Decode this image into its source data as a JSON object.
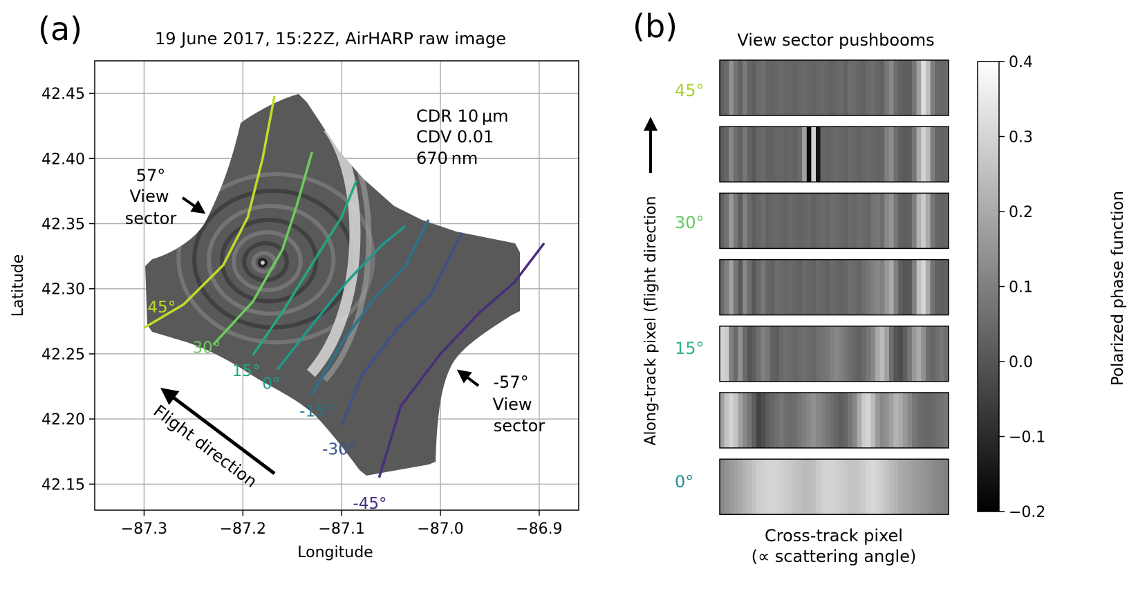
{
  "chart_data": [
    {
      "type": "scatter",
      "panel_label": "(a)",
      "title": "19 June 2017, 15:22Z, AirHARP raw image",
      "xlabel": "Longitude",
      "ylabel": "Latitude",
      "xlim": [
        -87.35,
        -86.86
      ],
      "ylim": [
        42.13,
        42.475
      ],
      "xticks": [
        -87.3,
        -87.2,
        -87.1,
        -87.0,
        -86.9
      ],
      "xtick_labels": [
        "−87.3",
        "−87.2",
        "−87.1",
        "−87.0",
        "−86.9"
      ],
      "yticks": [
        42.15,
        42.2,
        42.25,
        42.3,
        42.35,
        42.4,
        42.45
      ],
      "ytick_labels": [
        "42.15",
        "42.20",
        "42.25",
        "42.30",
        "42.35",
        "42.40",
        "42.45"
      ],
      "grid": true,
      "image_center": [
        -87.18,
        42.32
      ],
      "params": [
        "CDR 10 µm",
        "CDV 0.01",
        "670 nm"
      ],
      "view_angle_lines": [
        {
          "label": "45°",
          "color": "#c0dc2a",
          "points": [
            [
              -87.3,
              42.27
            ],
            [
              -87.26,
              42.288
            ],
            [
              -87.22,
              42.318
            ],
            [
              -87.195,
              42.355
            ],
            [
              -87.18,
              42.4
            ],
            [
              -87.168,
              42.448
            ]
          ]
        },
        {
          "label": "30°",
          "color": "#6ccd5a",
          "points": [
            [
              -87.23,
              42.257
            ],
            [
              -87.19,
              42.29
            ],
            [
              -87.16,
              42.33
            ],
            [
              -87.145,
              42.365
            ],
            [
              -87.13,
              42.405
            ]
          ]
        },
        {
          "label": "15°",
          "color": "#22a884",
          "points": [
            [
              -87.19,
              42.249
            ],
            [
              -87.16,
              42.282
            ],
            [
              -87.125,
              42.325
            ],
            [
              -87.1,
              42.355
            ],
            [
              -87.085,
              42.383
            ]
          ]
        },
        {
          "label": "0°",
          "color": "#1f9a8a",
          "points": [
            [
              -87.165,
              42.238
            ],
            [
              -87.13,
              42.272
            ],
            [
              -87.095,
              42.305
            ],
            [
              -87.06,
              42.333
            ],
            [
              -87.036,
              42.348
            ]
          ]
        },
        {
          "label": "-15°",
          "color": "#2c728e",
          "points": [
            [
              -87.13,
              42.219
            ],
            [
              -87.1,
              42.258
            ],
            [
              -87.07,
              42.29
            ],
            [
              -87.035,
              42.318
            ],
            [
              -87.012,
              42.353
            ]
          ]
        },
        {
          "label": "-30°",
          "color": "#3b528b",
          "points": [
            [
              -87.1,
              42.195
            ],
            [
              -87.08,
              42.233
            ],
            [
              -87.045,
              42.268
            ],
            [
              -87.01,
              42.295
            ],
            [
              -86.978,
              42.343
            ]
          ]
        },
        {
          "label": "-45°",
          "color": "#472d7b",
          "points": [
            [
              -87.062,
              42.155
            ],
            [
              -87.04,
              42.21
            ],
            [
              -87.0,
              42.25
            ],
            [
              -86.96,
              42.282
            ],
            [
              -86.925,
              42.305
            ],
            [
              -86.895,
              42.335
            ]
          ]
        }
      ],
      "annotations": {
        "view_sector_pos": [
          "57°",
          "View",
          "sector"
        ],
        "view_sector_neg": [
          "-57°",
          "View",
          "sector"
        ],
        "flight_direction": "Flight direction"
      }
    },
    {
      "type": "heatmap",
      "panel_label": "(b)",
      "title": "View sector pushbooms",
      "xlabel": "Cross-track pixel",
      "xlabel2": "(∝ scattering angle)",
      "ylabel": "Along-track pixel (flight direction",
      "row_labels": [
        {
          "label": "45°",
          "color": "#a8d22a"
        },
        {
          "label": "30°",
          "color": "#5ec962"
        },
        {
          "label": "15°",
          "color": "#2fb47c"
        },
        {
          "label": "0°",
          "color": "#21918c"
        }
      ],
      "pushboom_rows": [
        [
          0.03,
          0.05,
          0.14,
          0.07,
          0.03,
          0.09,
          0.04,
          0.02,
          0.05,
          0.06,
          0.04,
          0.03,
          0.04,
          0.05,
          0.04,
          0.04,
          0.03,
          0.04,
          0.05,
          0.04,
          0.03,
          0.04,
          0.05,
          0.04,
          0.03,
          0.04,
          0.05,
          0.03,
          0.06,
          0.05,
          0.04,
          0.03,
          0.05,
          0.06,
          0.04,
          0.03,
          0.08,
          0.12,
          0.06,
          0.03,
          0.02,
          0.02,
          0.08,
          0.18,
          0.32,
          0.25,
          0.1,
          0.05,
          0.04,
          0.05
        ],
        [
          0.02,
          0.04,
          0.12,
          0.06,
          0.03,
          0.08,
          0.03,
          0.01,
          0.04,
          0.05,
          0.03,
          0.03,
          0.04,
          0.04,
          0.03,
          0.04,
          0.03,
          0.05,
          0.18,
          -0.18,
          0.3,
          -0.15,
          0.04,
          0.03,
          0.04,
          0.05,
          0.04,
          0.03,
          0.05,
          0.04,
          0.03,
          0.04,
          0.05,
          0.04,
          0.03,
          0.04,
          0.1,
          0.13,
          0.06,
          0.02,
          0.01,
          0.02,
          0.08,
          0.2,
          0.3,
          0.24,
          0.1,
          0.04,
          0.03,
          0.04
        ],
        [
          0.03,
          0.07,
          0.16,
          0.08,
          0.02,
          0.1,
          0.05,
          0.02,
          0.04,
          0.06,
          0.03,
          0.04,
          0.05,
          0.04,
          0.03,
          0.05,
          0.04,
          0.03,
          0.04,
          0.05,
          0.03,
          0.04,
          0.05,
          0.04,
          0.06,
          0.05,
          0.04,
          0.03,
          0.05,
          0.04,
          0.06,
          0.05,
          0.04,
          0.07,
          0.08,
          0.06,
          0.12,
          0.15,
          0.08,
          0.03,
          0.02,
          0.03,
          0.1,
          0.22,
          0.28,
          0.2,
          0.08,
          0.04,
          0.03,
          0.04
        ],
        [
          0.05,
          0.1,
          0.18,
          0.08,
          0.01,
          0.12,
          0.06,
          0.01,
          0.05,
          0.08,
          0.04,
          0.03,
          0.06,
          0.05,
          0.04,
          0.05,
          0.04,
          0.03,
          0.05,
          0.04,
          0.03,
          0.05,
          0.04,
          0.03,
          0.05,
          0.04,
          0.03,
          0.04,
          0.06,
          0.05,
          0.04,
          0.06,
          0.08,
          0.1,
          0.12,
          0.1,
          0.16,
          0.2,
          0.1,
          0.02,
          0.0,
          0.01,
          0.1,
          0.25,
          0.3,
          0.2,
          0.07,
          0.03,
          0.02,
          0.03
        ],
        [
          0.3,
          0.28,
          0.1,
          0.05,
          0.14,
          0.05,
          0.0,
          0.02,
          0.06,
          0.1,
          0.08,
          0.03,
          0.02,
          0.05,
          0.06,
          0.05,
          0.04,
          0.05,
          0.06,
          0.05,
          0.04,
          0.06,
          0.07,
          0.08,
          0.1,
          0.12,
          0.1,
          0.08,
          0.06,
          0.04,
          0.03,
          0.05,
          0.08,
          0.12,
          0.2,
          0.24,
          0.18,
          0.06,
          0.0,
          -0.02,
          0.02,
          0.08,
          0.16,
          0.2,
          0.14,
          0.06,
          0.04,
          0.06,
          0.08,
          0.06
        ],
        [
          0.18,
          0.26,
          0.3,
          0.26,
          0.18,
          0.12,
          0.08,
          0.02,
          -0.04,
          -0.02,
          0.02,
          0.04,
          0.06,
          0.08,
          0.06,
          0.05,
          0.06,
          0.08,
          0.1,
          0.12,
          0.14,
          0.12,
          0.1,
          0.08,
          0.06,
          0.04,
          0.02,
          0.04,
          0.08,
          0.12,
          0.2,
          0.28,
          0.3,
          0.24,
          0.16,
          0.12,
          0.14,
          0.18,
          0.22,
          0.2,
          0.16,
          0.12,
          0.08,
          0.06,
          0.05,
          0.04,
          0.05,
          0.06,
          0.07,
          0.08
        ],
        [
          0.12,
          0.14,
          0.16,
          0.18,
          0.2,
          0.22,
          0.24,
          0.26,
          0.28,
          0.29,
          0.3,
          0.3,
          0.3,
          0.29,
          0.28,
          0.27,
          0.26,
          0.25,
          0.24,
          0.24,
          0.25,
          0.27,
          0.29,
          0.3,
          0.3,
          0.29,
          0.28,
          0.27,
          0.26,
          0.26,
          0.27,
          0.28,
          0.3,
          0.31,
          0.3,
          0.28,
          0.26,
          0.24,
          0.22,
          0.2,
          0.19,
          0.18,
          0.17,
          0.16,
          0.15,
          0.14,
          0.13,
          0.12,
          0.11,
          0.1
        ]
      ],
      "colorbar": {
        "label": "Polarized phase function",
        "range": [
          -0.2,
          0.4
        ],
        "ticks": [
          -0.2,
          -0.1,
          0.0,
          0.1,
          0.2,
          0.3,
          0.4
        ],
        "tick_labels": [
          "−0.2",
          "−0.1",
          "0.0",
          "0.1",
          "0.2",
          "0.3",
          "0.4"
        ]
      }
    }
  ]
}
